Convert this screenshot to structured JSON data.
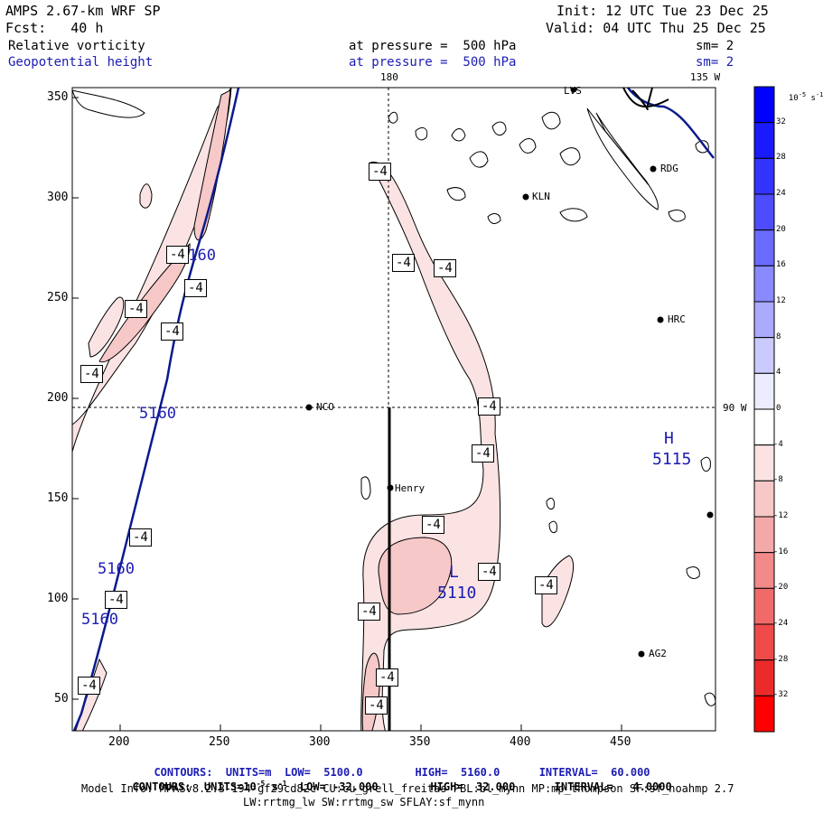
{
  "header": {
    "model": "AMPS 2.67-km WRF SP",
    "forecast": "Fcst:   40 h",
    "init": "Init: 12 UTC Tue 23 Dec 25",
    "valid": "Valid: 04 UTC Thu 25 Dec 25",
    "field1_name": "Relative vorticity",
    "field1_level": "at pressure =  500 hPa",
    "field1_smooth": "sm= 2",
    "field2_name": "Geopotential height",
    "field2_level": "at pressure =  500 hPa",
    "field2_smooth": "sm= 2"
  },
  "colors": {
    "height_contour": "#0a1a8c",
    "fill_light": "#fbe3e3",
    "fill_medium": "#f6c8c8",
    "label_blue": "#1c1cb4"
  },
  "map": {
    "lon_labels": [
      "180",
      "135 W",
      "90 W"
    ],
    "x_ticks": [
      "200",
      "250",
      "300",
      "350",
      "400",
      "450"
    ],
    "y_ticks": [
      "50",
      "100",
      "150",
      "200",
      "250",
      "300",
      "350"
    ],
    "stations": [
      "LVS",
      "RDG",
      "KLN",
      "HRC",
      "NCO",
      "Henry",
      "AG2"
    ],
    "height_labels": [
      "5160",
      "5160",
      "5160",
      "5160"
    ],
    "high_label": "H",
    "high_value": "5115",
    "low_label": "L",
    "low_value": "5110",
    "vort_label": "-4"
  },
  "colorbar": {
    "unit_base": "10",
    "unit_exp": "-5",
    "unit_suffix": "s",
    "unit_suffix_exp": "-1",
    "labels": [
      "32",
      "28",
      "24",
      "20",
      "16",
      "12",
      "8",
      "4",
      "0",
      "-4",
      "-8",
      "-12",
      "-16",
      "-20",
      "-24",
      "-28",
      "-32"
    ],
    "colors": [
      "#0000ff",
      "#1a1aff",
      "#3333ff",
      "#4d4dff",
      "#6a6aff",
      "#8a8aff",
      "#aaaaff",
      "#cacaff",
      "#ececff",
      "#ffffff",
      "#fbe3e3",
      "#f6c8c8",
      "#f4a9a9",
      "#f28a8a",
      "#f06a6a",
      "#ee4a4a",
      "#ec2a2a",
      "#ff0000"
    ]
  },
  "footer": {
    "contours1_pre": "CONTOURS:  UNITS=m  LOW=  5100.0",
    "contours1_post": "HIGH=  5160.0      INTERVAL=  60.000",
    "contours2_pre": "CONTOURS:  UNITS=",
    "contours2_unit_base": "10",
    "contours2_unit_exp": "-5",
    "contours2_unit_s": " s",
    "contours2_unit_s_exp": "-1",
    "contours2_post": "  LOW= -32.000        HIGH=  32.000      INTERVAL=   4.0000",
    "model_info": "Model Info: MPASv8.2.3-194-gf29cd82c CU:cu_grell_freitas PBL:bl_mynn MP:mp_thompson SF:sf_noahmp 2.7",
    "model_info2": "LW:rrtmg_lw SW:rrtmg_sw SFLAY:sf_mynn"
  }
}
